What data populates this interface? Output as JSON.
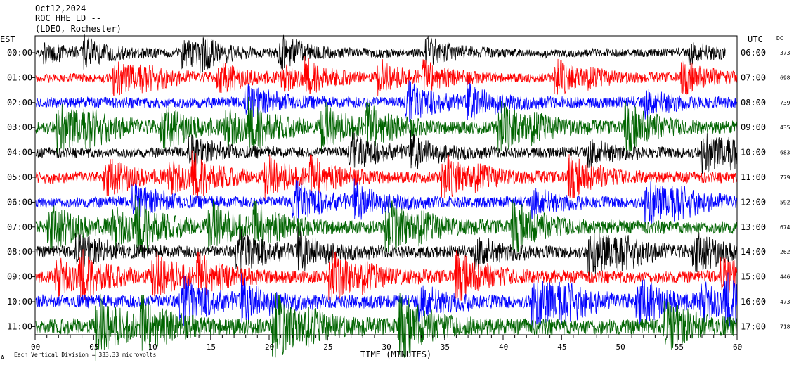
{
  "header": {
    "date": "Oct12,2024",
    "station": "ROC HHE LD --",
    "network": "(LDEO, Rochester)"
  },
  "left_axis_title": "EST",
  "right_axis_title": "UTC",
  "dc_title": "DC",
  "x_axis_title": "TIME (MINUTES)",
  "footer_note": "Each Vertical Division =  333.33 microvolts",
  "footer_mark": "A",
  "chart_data": {
    "type": "line",
    "xlim": [
      0,
      60
    ],
    "x_ticks": [
      "00",
      "05",
      "10",
      "15",
      "20",
      "25",
      "30",
      "35",
      "40",
      "45",
      "50",
      "55",
      "60"
    ],
    "rows": [
      {
        "est": "00:00",
        "utc": "06:00",
        "dc": "373",
        "color": "#000000",
        "amp": 11,
        "end_minute": 59
      },
      {
        "est": "01:00",
        "utc": "07:00",
        "dc": "698",
        "color": "#ff0000",
        "amp": 12,
        "end_minute": 60
      },
      {
        "est": "02:00",
        "utc": "08:00",
        "dc": "739",
        "color": "#0000ff",
        "amp": 15,
        "end_minute": 60
      },
      {
        "est": "03:00",
        "utc": "09:00",
        "dc": "435",
        "color": "#006400",
        "amp": 17,
        "end_minute": 60
      },
      {
        "est": "04:00",
        "utc": "10:00",
        "dc": "683",
        "color": "#000000",
        "amp": 14,
        "end_minute": 60
      },
      {
        "est": "05:00",
        "utc": "11:00",
        "dc": "779",
        "color": "#ff0000",
        "amp": 15,
        "end_minute": 60
      },
      {
        "est": "06:00",
        "utc": "12:00",
        "dc": "592",
        "color": "#0000ff",
        "amp": 15,
        "end_minute": 60
      },
      {
        "est": "07:00",
        "utc": "13:00",
        "dc": "674",
        "color": "#006400",
        "amp": 18,
        "end_minute": 60
      },
      {
        "est": "08:00",
        "utc": "14:00",
        "dc": "262",
        "color": "#000000",
        "amp": 16,
        "end_minute": 60
      },
      {
        "est": "09:00",
        "utc": "15:00",
        "dc": "446",
        "color": "#ff0000",
        "amp": 17,
        "end_minute": 60
      },
      {
        "est": "10:00",
        "utc": "16:00",
        "dc": "473",
        "color": "#0000ff",
        "amp": 18,
        "end_minute": 60
      },
      {
        "est": "11:00",
        "utc": "17:00",
        "dc": "718",
        "color": "#006400",
        "amp": 22,
        "end_minute": 60
      }
    ]
  }
}
